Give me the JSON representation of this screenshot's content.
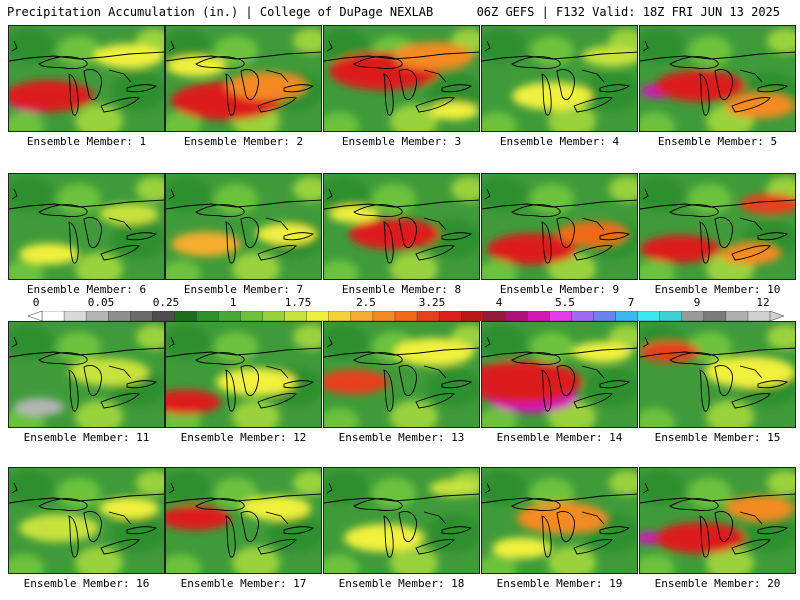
{
  "header": {
    "left": "Precipitation Accumulation (in.) | College of DuPage NEXLAB",
    "right": "06Z GEFS | F132 Valid: 18Z FRI JUN 13 2025"
  },
  "colorbar": {
    "labels": [
      "0",
      "0.05",
      "0.25",
      "1",
      "1.75",
      "2.5",
      "3.25",
      "4",
      "5.5",
      "7",
      "9",
      "12"
    ],
    "colors": [
      "#ffffff",
      "#d9d9d9",
      "#b5b5b5",
      "#8e8e8e",
      "#6b6b6b",
      "#4d4d4d",
      "#1f6b1f",
      "#2f8f2f",
      "#49a83a",
      "#6cc23c",
      "#9ad23c",
      "#c8e23c",
      "#f0f03c",
      "#f5d23a",
      "#f5ad2f",
      "#f58a22",
      "#f06a18",
      "#e8401c",
      "#dc1f1f",
      "#b81818",
      "#901c3a",
      "#b0107a",
      "#d219b8",
      "#e23ce8",
      "#a06af0",
      "#6a82f0",
      "#3cb8f0",
      "#3ce8f0",
      "#3cd2d2",
      "#9a9a9a",
      "#7a7a7a",
      "#b0b0b0",
      "#d0d0d0"
    ]
  },
  "panels": [
    {
      "caption": "Ensemble Member: 1"
    },
    {
      "caption": "Ensemble Member: 2"
    },
    {
      "caption": "Ensemble Member: 3"
    },
    {
      "caption": "Ensemble Member: 4"
    },
    {
      "caption": "Ensemble Member: 5"
    },
    {
      "caption": "Ensemble Member: 6"
    },
    {
      "caption": "Ensemble Member: 7"
    },
    {
      "caption": "Ensemble Member: 8"
    },
    {
      "caption": "Ensemble Member: 9"
    },
    {
      "caption": "Ensemble Member: 10"
    },
    {
      "caption": "Ensemble Member: 11"
    },
    {
      "caption": "Ensemble Member: 12"
    },
    {
      "caption": "Ensemble Member: 13"
    },
    {
      "caption": "Ensemble Member: 14"
    },
    {
      "caption": "Ensemble Member: 15"
    },
    {
      "caption": "Ensemble Member: 16"
    },
    {
      "caption": "Ensemble Member: 17"
    },
    {
      "caption": "Ensemble Member: 18"
    },
    {
      "caption": "Ensemble Member: 19"
    },
    {
      "caption": "Ensemble Member: 20"
    }
  ]
}
